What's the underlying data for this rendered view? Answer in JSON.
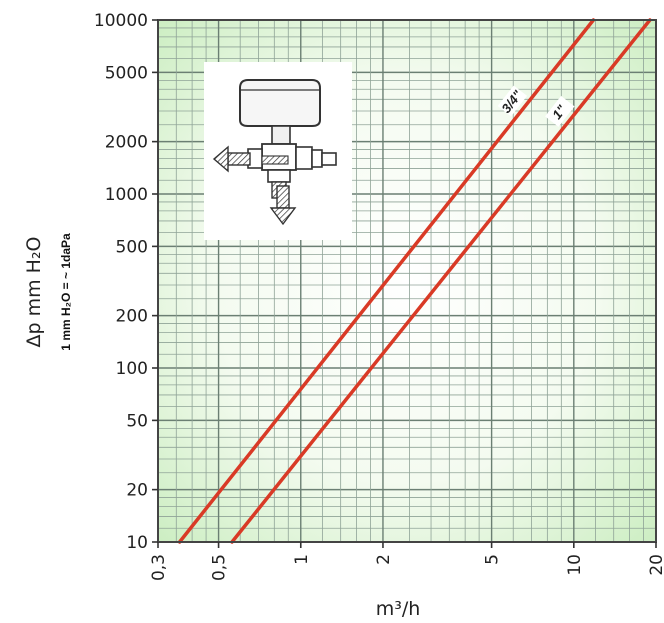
{
  "chart_data": {
    "type": "line",
    "xscale": "log",
    "yscale": "log",
    "xlim": [
      0.3,
      20
    ],
    "ylim": [
      10,
      10000
    ],
    "xlabel": "m³/h",
    "ylabel": "Δp  mm H₂O",
    "ylabel_note": "1 mm H₂O = ~ 1daPa",
    "x_ticks": [
      0.3,
      0.5,
      1,
      2,
      5,
      10,
      20
    ],
    "x_tick_labels": [
      "0,3",
      "0,5",
      "1",
      "2",
      "5",
      "10",
      "20"
    ],
    "y_ticks": [
      10,
      20,
      50,
      100,
      200,
      500,
      1000,
      2000,
      5000,
      10000
    ],
    "y_tick_labels": [
      "10",
      "20",
      "50",
      "100",
      "200",
      "500",
      "1000",
      "2000",
      "5000",
      "10000"
    ],
    "grid": true,
    "series": [
      {
        "name": "3/4\"",
        "color": "#d93a26",
        "x": [
          0.36,
          11.8
        ],
        "y": [
          10,
          10000
        ]
      },
      {
        "name": "1\"",
        "color": "#d93a26",
        "x": [
          0.56,
          19.0
        ],
        "y": [
          10,
          10000
        ]
      }
    ]
  },
  "illustration": {
    "icon": "valve-body-icon",
    "description_visible": false
  }
}
